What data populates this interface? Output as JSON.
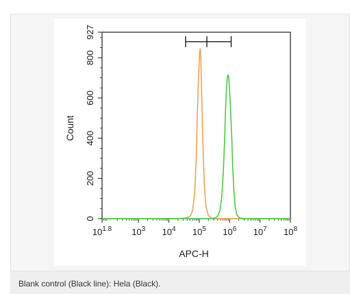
{
  "caption": "Blank control (Black line): Hela (Black).",
  "chart_data": {
    "type": "histogram",
    "xlabel": "APC-H",
    "ylabel": "Count",
    "x_scale": "log",
    "xlim": [
      1.8,
      8
    ],
    "ylim": [
      0,
      927
    ],
    "x_ticks": [
      {
        "exp": 1.8,
        "label_base": "10",
        "label_exp": "1.8"
      },
      {
        "exp": 3,
        "label_base": "10",
        "label_exp": "3"
      },
      {
        "exp": 4,
        "label_base": "10",
        "label_exp": "4"
      },
      {
        "exp": 5,
        "label_base": "10",
        "label_exp": "5"
      },
      {
        "exp": 6,
        "label_base": "10",
        "label_exp": "6"
      },
      {
        "exp": 7,
        "label_base": "10",
        "label_exp": "7"
      },
      {
        "exp": 8,
        "label_base": "10",
        "label_exp": "8"
      }
    ],
    "y_ticks": [
      0,
      200,
      400,
      600,
      800,
      927
    ],
    "gate": {
      "x_start_log": 4.55,
      "x_mid_log": 5.25,
      "x_end_log": 6.05,
      "y": 880
    },
    "series": [
      {
        "color": "#f0a050",
        "points": [
          [
            1.8,
            0
          ],
          [
            3.5,
            0
          ],
          [
            4.3,
            0
          ],
          [
            4.55,
            3
          ],
          [
            4.7,
            12
          ],
          [
            4.78,
            40
          ],
          [
            4.85,
            130
          ],
          [
            4.9,
            300
          ],
          [
            4.93,
            480
          ],
          [
            4.96,
            640
          ],
          [
            4.99,
            760
          ],
          [
            5.01,
            830
          ],
          [
            5.03,
            845
          ],
          [
            5.05,
            800
          ],
          [
            5.07,
            680
          ],
          [
            5.1,
            500
          ],
          [
            5.13,
            320
          ],
          [
            5.17,
            160
          ],
          [
            5.22,
            60
          ],
          [
            5.3,
            15
          ],
          [
            5.4,
            3
          ],
          [
            5.6,
            0
          ],
          [
            8,
            0
          ]
        ]
      },
      {
        "color": "#44cc44",
        "points": [
          [
            1.8,
            0
          ],
          [
            5.4,
            0
          ],
          [
            5.5,
            2
          ],
          [
            5.6,
            10
          ],
          [
            5.68,
            40
          ],
          [
            5.74,
            110
          ],
          [
            5.79,
            230
          ],
          [
            5.83,
            380
          ],
          [
            5.86,
            520
          ],
          [
            5.89,
            630
          ],
          [
            5.92,
            700
          ],
          [
            5.95,
            715
          ],
          [
            5.97,
            700
          ],
          [
            6.0,
            640
          ],
          [
            6.03,
            540
          ],
          [
            6.07,
            400
          ],
          [
            6.1,
            260
          ],
          [
            6.14,
            140
          ],
          [
            6.18,
            60
          ],
          [
            6.24,
            18
          ],
          [
            6.32,
            4
          ],
          [
            6.45,
            0
          ],
          [
            8,
            0
          ]
        ]
      }
    ]
  }
}
